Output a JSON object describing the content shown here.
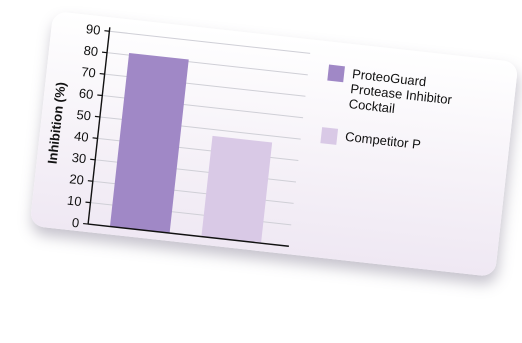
{
  "chart_data": {
    "type": "bar",
    "categories": [
      "ProteoGuard Protease Inhibitor Cocktail",
      "Competitor P"
    ],
    "series": [
      {
        "values": [
          81,
          47
        ]
      }
    ],
    "ylabel": "Inhibition (%)",
    "xlabel": "",
    "ylim": [
      0,
      90
    ],
    "yticks": [
      0,
      10,
      20,
      30,
      40,
      50,
      60,
      70,
      80,
      90
    ],
    "grid": true,
    "legend": {
      "placement": "right",
      "entries": [
        {
          "lines": [
            "ProteoGuard",
            "Protease Inhibitor",
            "Cocktail"
          ],
          "color": "#a088c6"
        },
        {
          "lines": [
            "Competitor P"
          ],
          "color": "#d9c9e6"
        }
      ]
    },
    "colors": [
      "#a088c6",
      "#d9c9e6"
    ]
  }
}
